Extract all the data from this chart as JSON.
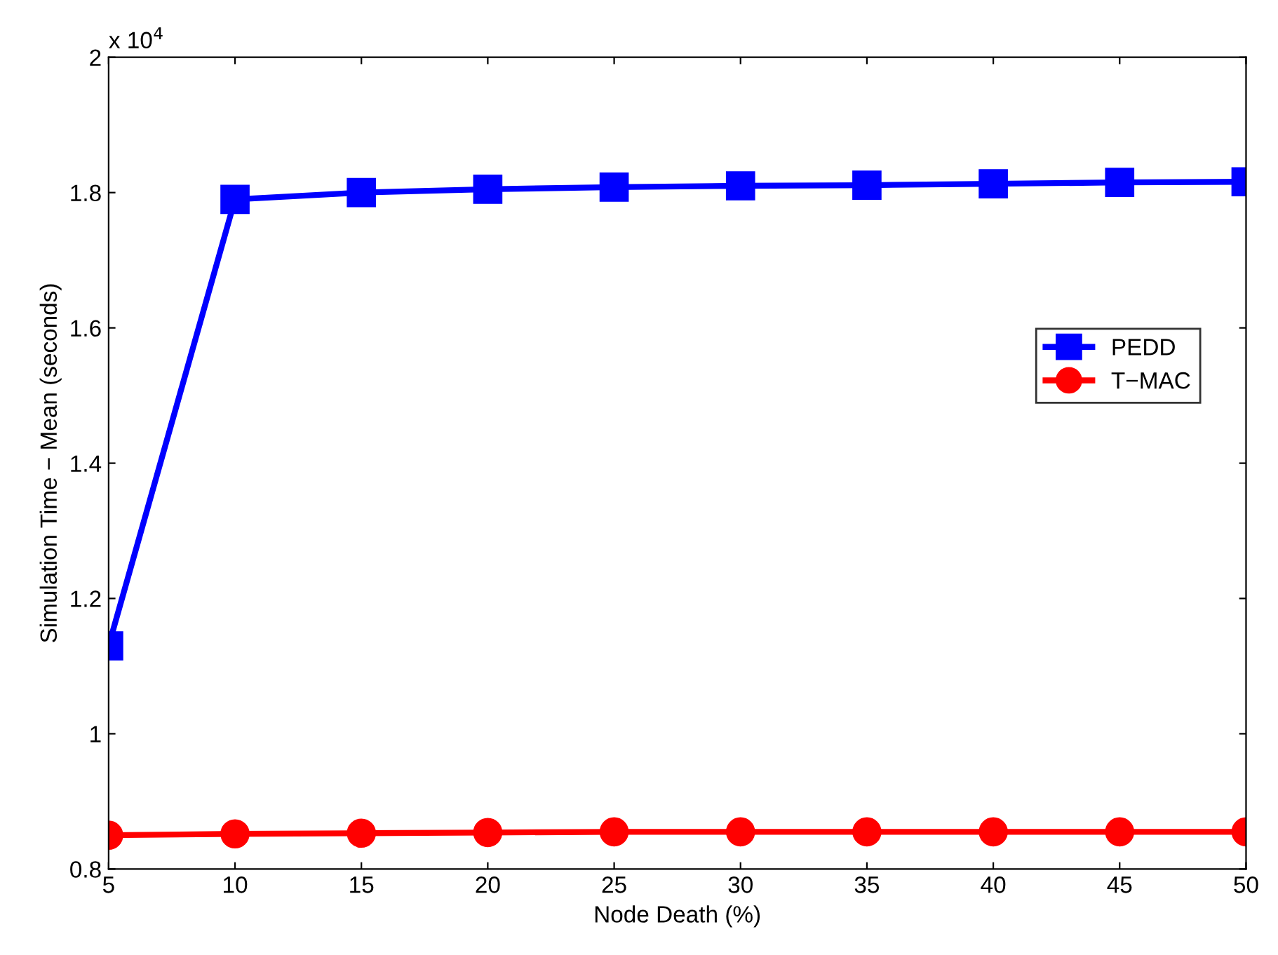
{
  "chart_data": {
    "type": "line",
    "xlabel": "Node Death (%)",
    "ylabel": "Simulation Time − Mean (seconds)",
    "annotations": [
      "x 10$^{4}$"
    ],
    "x": [
      5,
      10,
      15,
      20,
      25,
      30,
      35,
      40,
      45,
      50
    ],
    "series": [
      {
        "name": "PEDD",
        "color": "#0000ff",
        "marker": "square",
        "values": [
          1.13,
          1.79,
          1.8,
          1.805,
          1.808,
          1.81,
          1.811,
          1.813,
          1.815,
          1.816
        ]
      },
      {
        "name": "T−MAC",
        "color": "#ff0000",
        "marker": "circle",
        "values": [
          0.85,
          0.852,
          0.853,
          0.854,
          0.855,
          0.855,
          0.855,
          0.855,
          0.855,
          0.855
        ]
      }
    ],
    "xlim": [
      5,
      50
    ],
    "xticks": [
      5,
      10,
      15,
      20,
      25,
      30,
      35,
      40,
      45,
      50
    ],
    "ylim": [
      0.8,
      2
    ],
    "yticks": [
      0.8,
      1,
      1.2,
      1.4,
      1.6,
      1.8,
      2
    ],
    "grid": false,
    "legend": "right",
    "line_style": "solid"
  }
}
